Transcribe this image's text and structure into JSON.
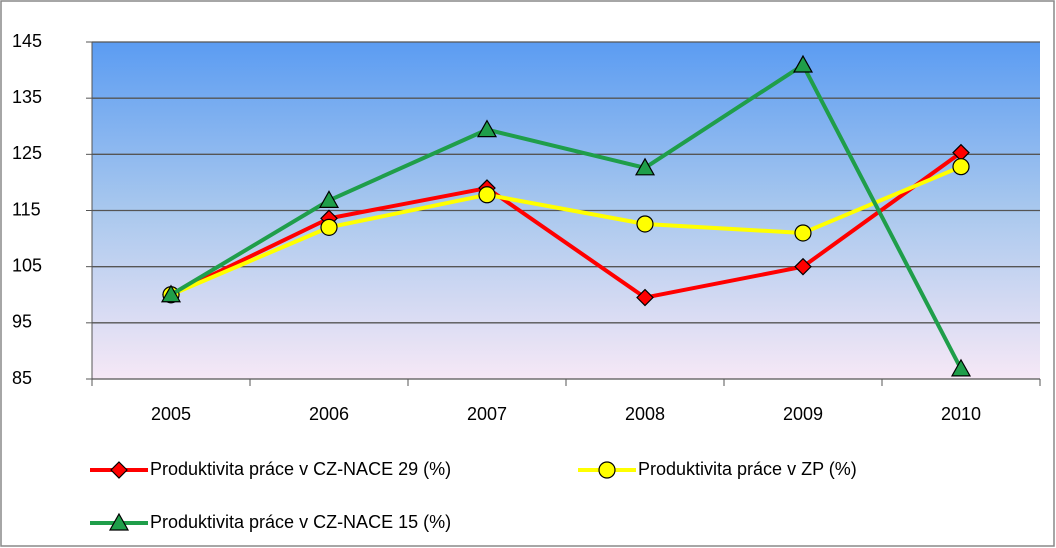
{
  "chart_data": {
    "type": "line",
    "categories": [
      "2005",
      "2006",
      "2007",
      "2008",
      "2009",
      "2010"
    ],
    "series": [
      {
        "name": "Produktivita práce v CZ-NACE 29 (%)",
        "color": "#ff0000",
        "marker": "diamond",
        "values": [
          100,
          113.6,
          119,
          99.5,
          105,
          125.3
        ]
      },
      {
        "name": "Produktivita práce v ZP (%)",
        "color": "#ffff00",
        "marker": "circle",
        "values": [
          100,
          112,
          117.8,
          112.6,
          111,
          122.8
        ]
      },
      {
        "name": "Produktivita práce v CZ-NACE 15 (%)",
        "color": "#1f9e4a",
        "marker": "triangle",
        "values": [
          100,
          116.8,
          129.4,
          122.6,
          140.9,
          86.8
        ]
      }
    ],
    "ylim": [
      85,
      145
    ],
    "yticks": [
      85,
      95,
      105,
      115,
      125,
      135,
      145
    ],
    "grid": true,
    "legend": "bottom"
  }
}
